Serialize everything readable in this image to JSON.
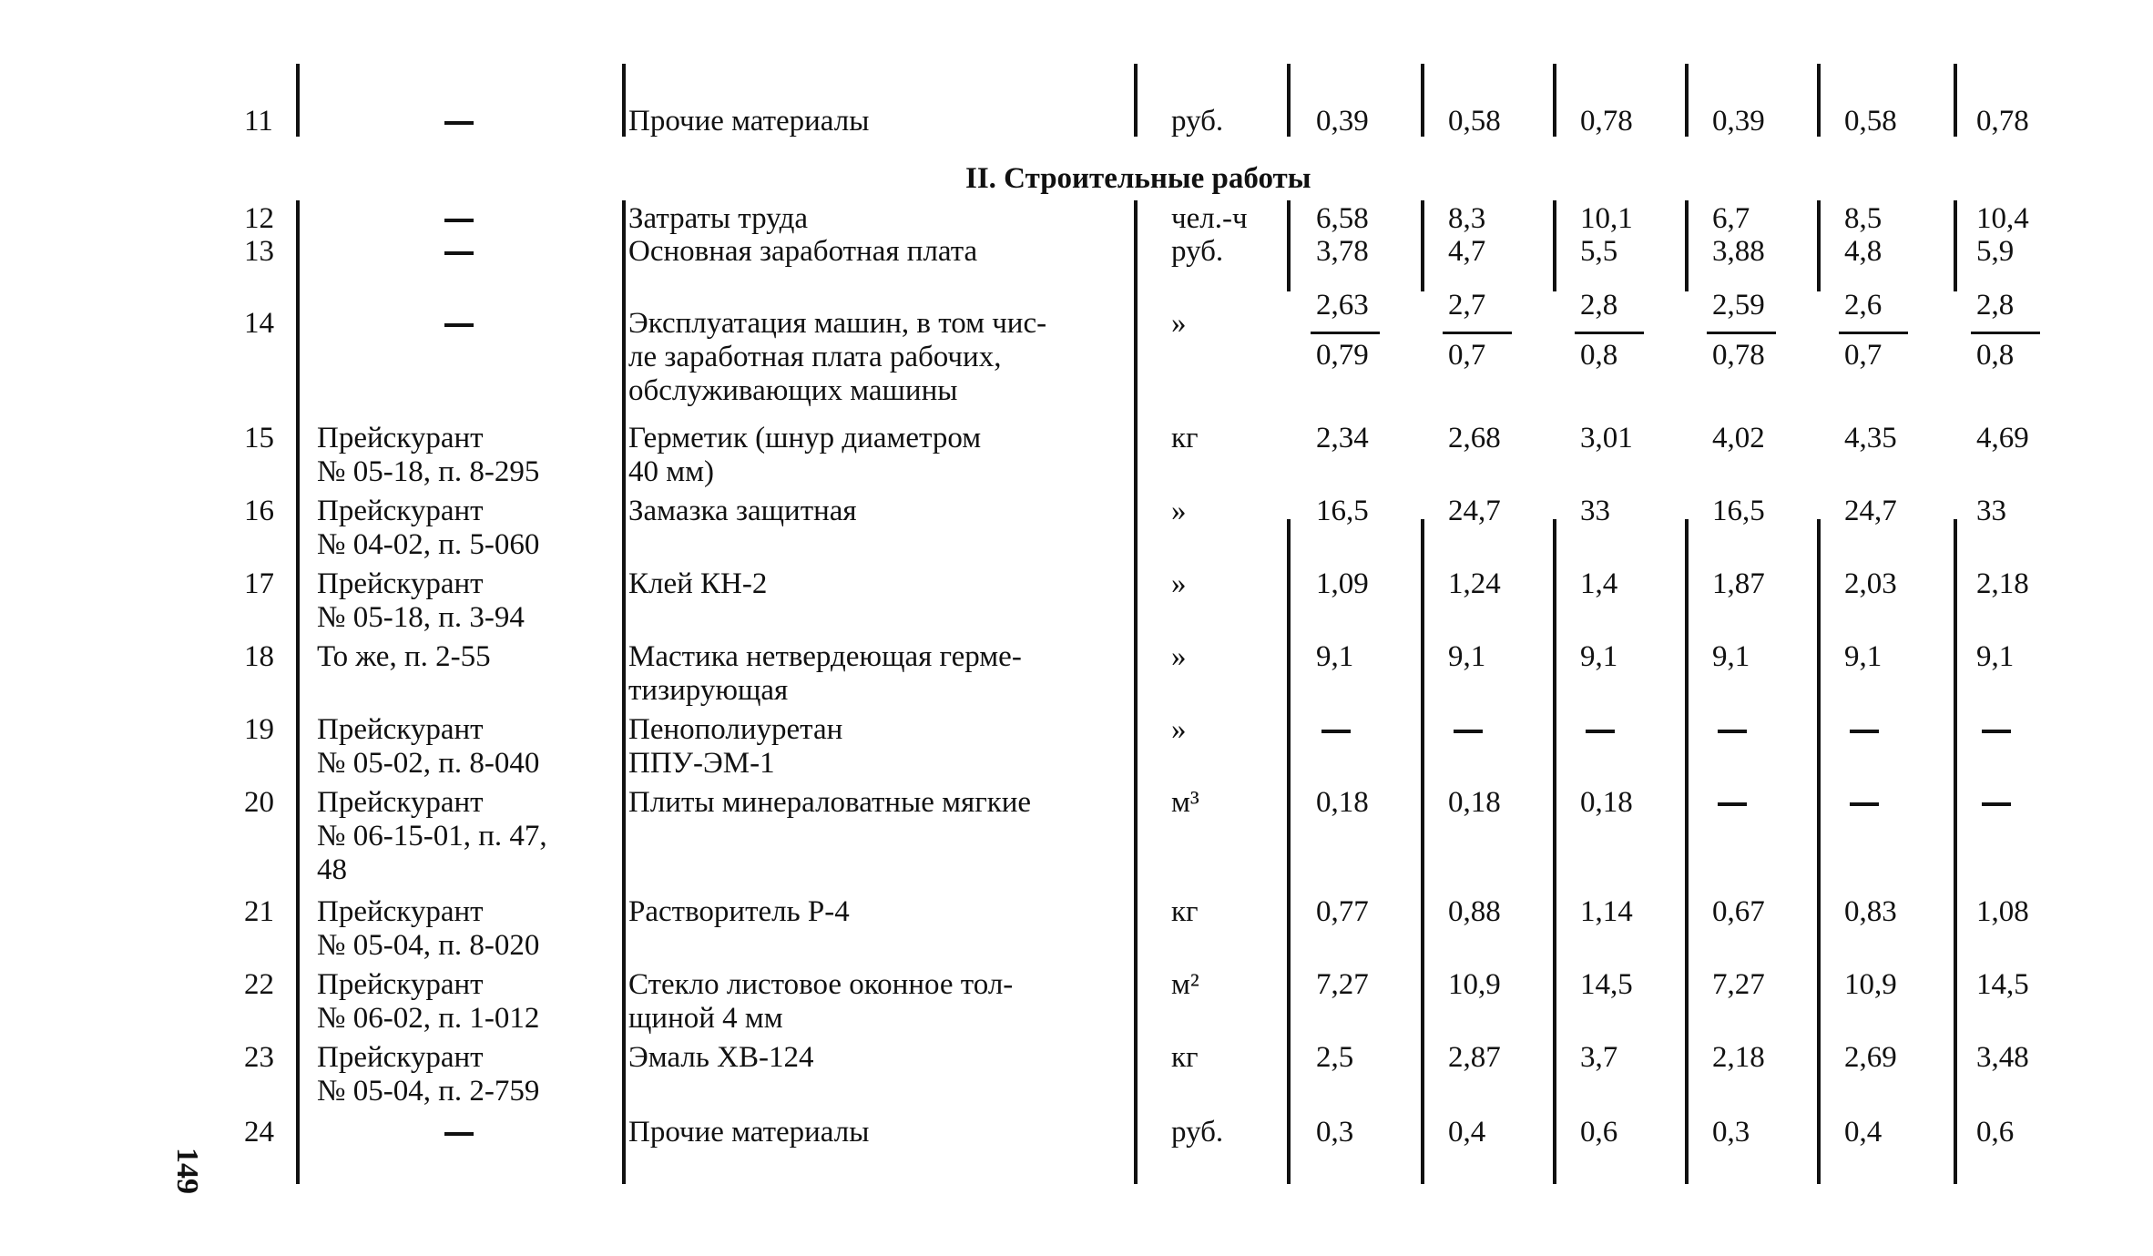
{
  "section_title": "II. Строительные работы",
  "page_number": "149",
  "rows": [
    {
      "num": "11",
      "source": "",
      "name": "Прочие материалы",
      "unit": "руб.",
      "values": [
        "0,39",
        "0,58",
        "0,78",
        "0,39",
        "0,58",
        "0,78"
      ]
    },
    {
      "num": "12",
      "source": "",
      "name": "Затраты труда",
      "unit": "чел.-ч",
      "values": [
        "6,58",
        "8,3",
        "10,1",
        "6,7",
        "8,5",
        "10,4"
      ]
    },
    {
      "num": "13",
      "source": "",
      "name": "Основная заработная плата",
      "unit": "руб.",
      "values": [
        "3,78",
        "4,7",
        "5,5",
        "3,88",
        "4,8",
        "5,9"
      ]
    },
    {
      "num": "14",
      "source": "",
      "name": "Эксплуатация машин, в том чис-\nле заработная плата рабочих,\nобслуживающих машины",
      "unit": "»",
      "values_top": [
        "2,63",
        "2,7",
        "2,8",
        "2,59",
        "2,6",
        "2,8"
      ],
      "values_bottom": [
        "0,79",
        "0,7",
        "0,8",
        "0,78",
        "0,7",
        "0,8"
      ]
    },
    {
      "num": "15",
      "source": "Прейскурант\n№ 05-18, п. 8-295",
      "name": "Герметик (шнур диаметром\n40 мм)",
      "unit": "кг",
      "values": [
        "2,34",
        "2,68",
        "3,01",
        "4,02",
        "4,35",
        "4,69"
      ]
    },
    {
      "num": "16",
      "source": "Прейскурант\n№ 04-02, п. 5-060",
      "name": "Замазка защитная",
      "unit": "»",
      "values": [
        "16,5",
        "24,7",
        "33",
        "16,5",
        "24,7",
        "33"
      ]
    },
    {
      "num": "17",
      "source": "Прейскурант\n№ 05-18, п. 3-94",
      "name": "Клей КН-2",
      "unit": "»",
      "values": [
        "1,09",
        "1,24",
        "1,4",
        "1,87",
        "2,03",
        "2,18"
      ]
    },
    {
      "num": "18",
      "source": "То же, п. 2-55",
      "name": "Мастика нетвердеющая герме-\nтизирующая",
      "unit": "»",
      "values": [
        "9,1",
        "9,1",
        "9,1",
        "9,1",
        "9,1",
        "9,1"
      ]
    },
    {
      "num": "19",
      "source": "Прейскурант\n№ 05-02, п. 8-040",
      "name": "Пенополиуретан\nППУ-ЭМ-1",
      "unit": "»",
      "values": [
        "—",
        "—",
        "—",
        "—",
        "—",
        "—"
      ]
    },
    {
      "num": "20",
      "source": "Прейскурант\n№ 06-15-01, п. 47,\n48",
      "name": "Плиты минераловатные мягкие",
      "unit": "м³",
      "values": [
        "0,18",
        "0,18",
        "0,18",
        "—",
        "—",
        "—"
      ]
    },
    {
      "num": "21",
      "source": "Прейскурант\n№ 05-04, п. 8-020",
      "name": "Растворитель Р-4",
      "unit": "кг",
      "values": [
        "0,77",
        "0,88",
        "1,14",
        "0,67",
        "0,83",
        "1,08"
      ]
    },
    {
      "num": "22",
      "source": "Прейскурант\n№ 06-02, п. 1-012",
      "name": "Стекло листовое оконное тол-\nщиной 4 мм",
      "unit": "м²",
      "values": [
        "7,27",
        "10,9",
        "14,5",
        "7,27",
        "10,9",
        "14,5"
      ]
    },
    {
      "num": "23",
      "source": "Прейскурант\n№ 05-04, п. 2-759",
      "name": "Эмаль ХВ-124",
      "unit": "кг",
      "values": [
        "2,5",
        "2,87",
        "3,7",
        "2,18",
        "2,69",
        "3,48"
      ]
    },
    {
      "num": "24",
      "source": "",
      "name": "Прочие материалы",
      "unit": "руб.",
      "values": [
        "0,3",
        "0,4",
        "0,6",
        "0,3",
        "0,4",
        "0,6"
      ]
    }
  ]
}
